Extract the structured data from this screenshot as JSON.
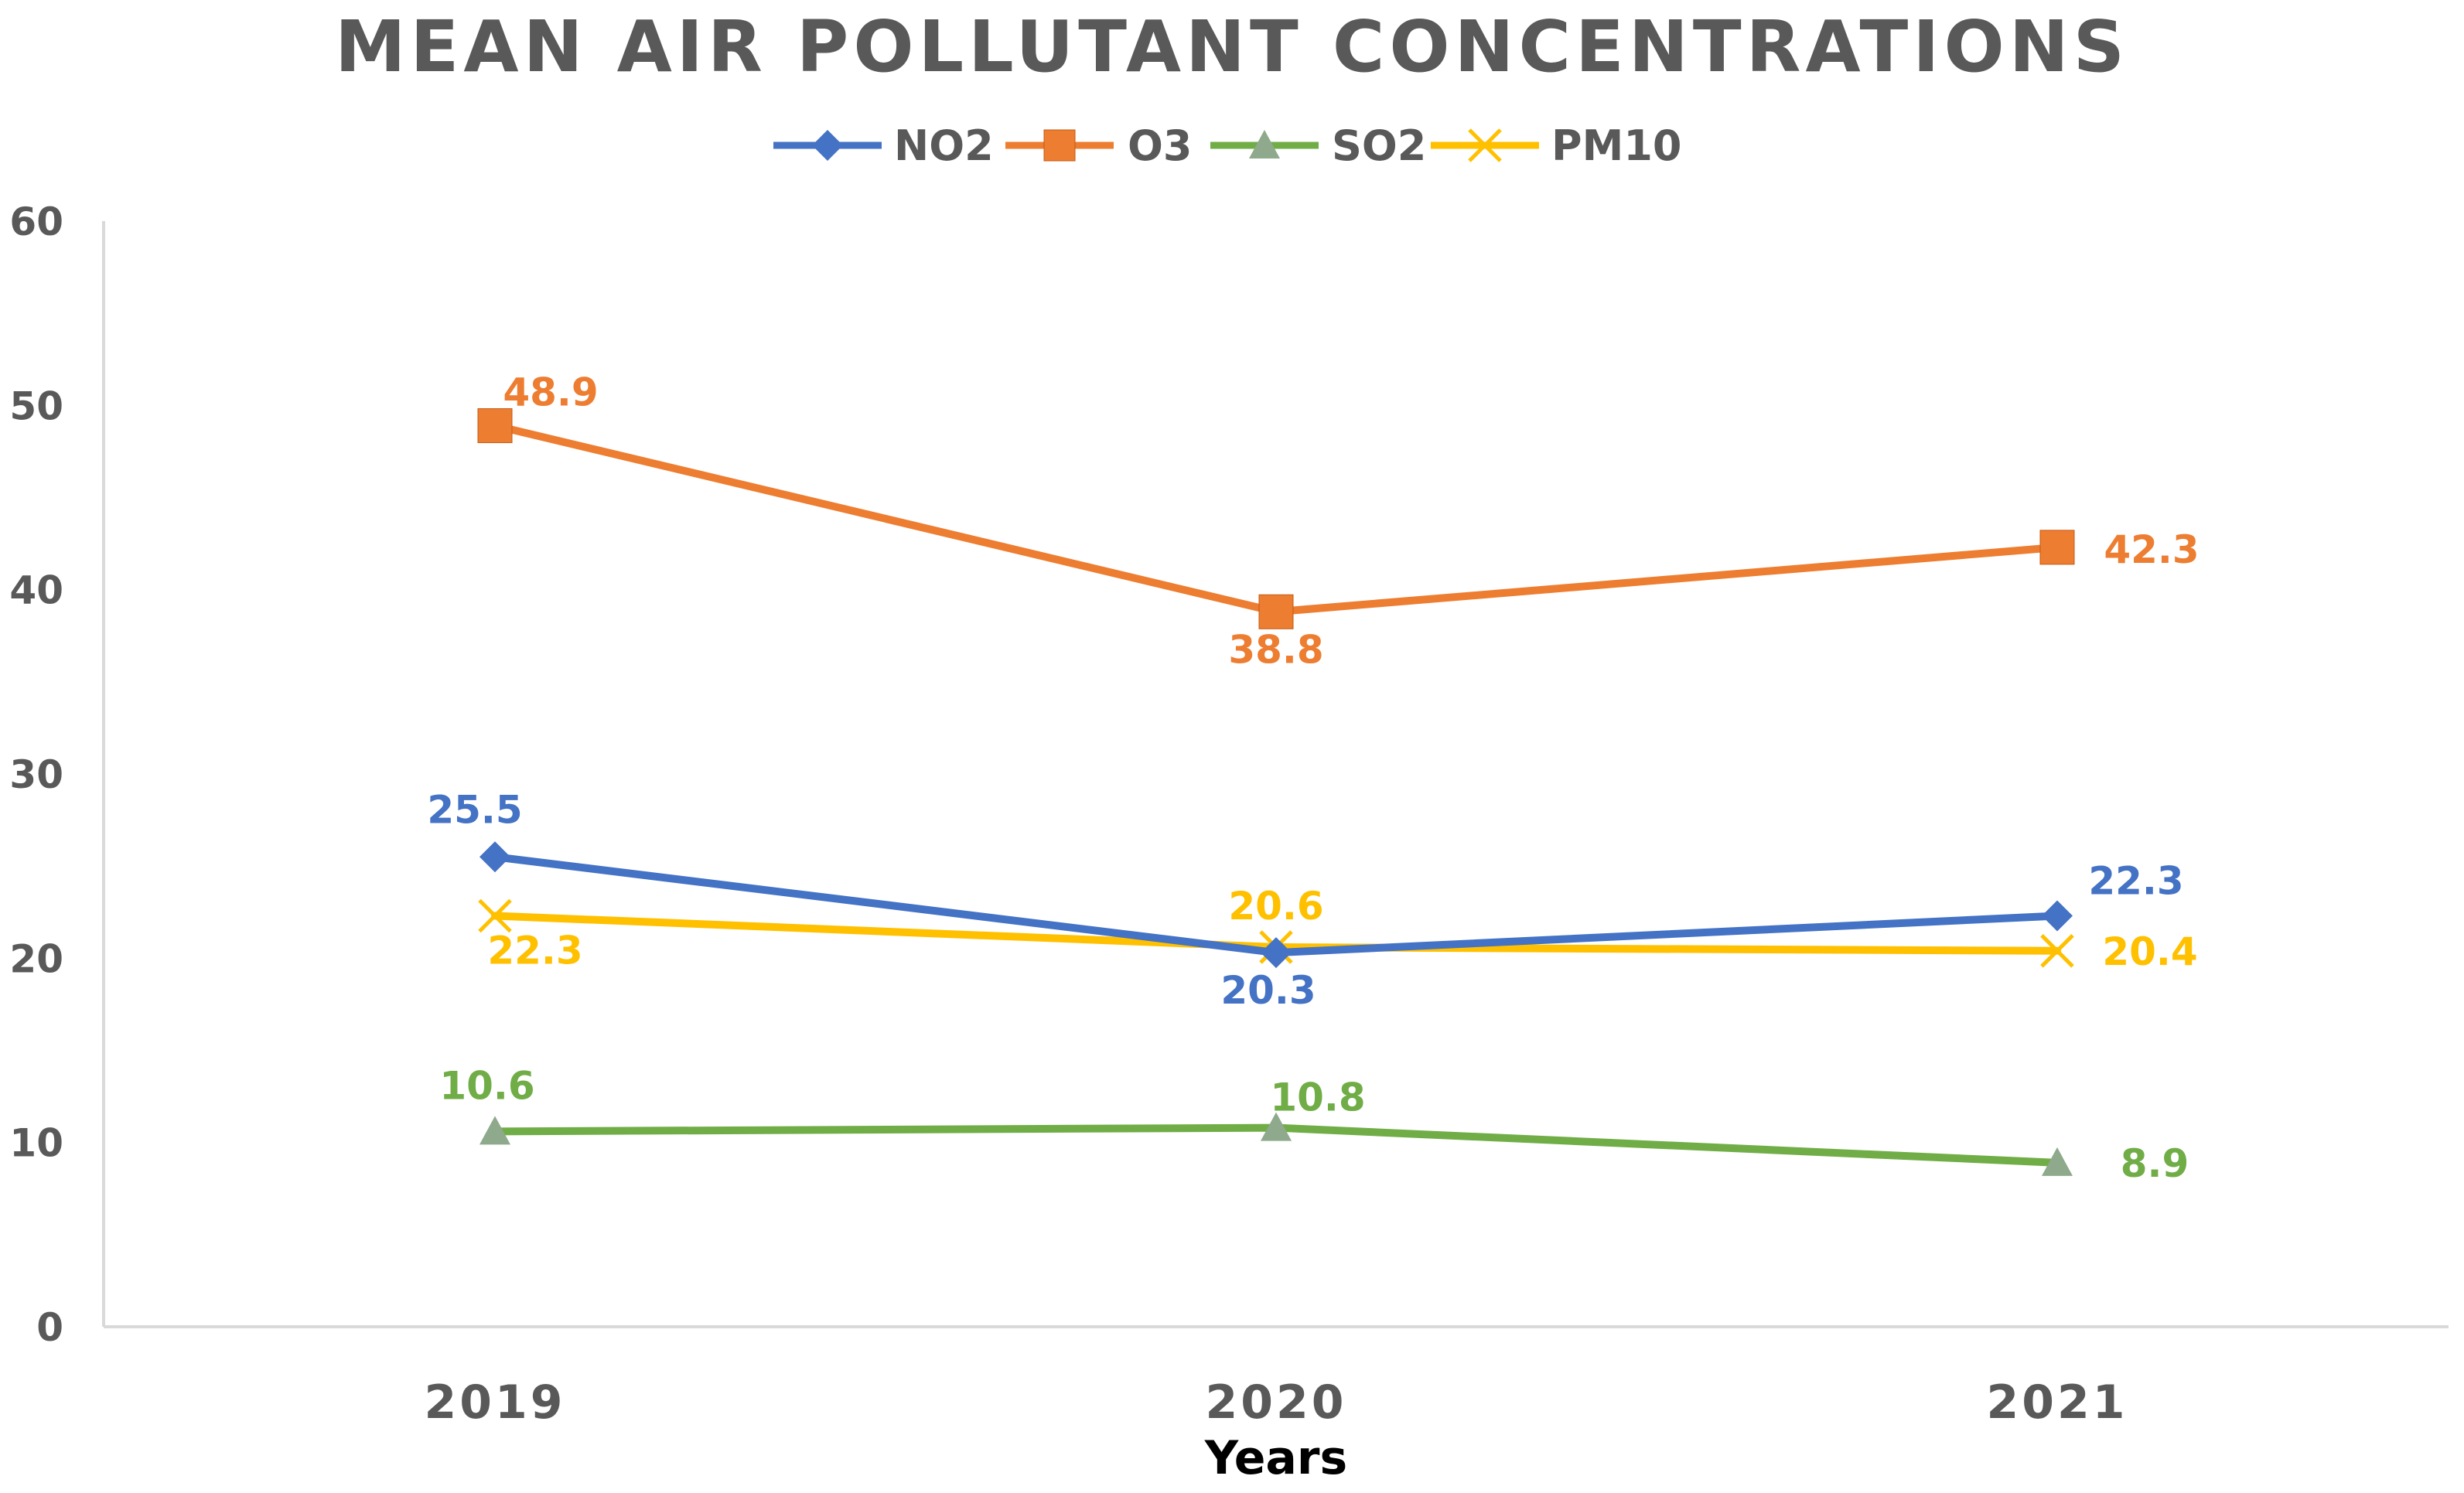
{
  "chart_data": {
    "type": "line",
    "title": "MEAN AIR POLLUTANT CONCENTRATIONS",
    "xlabel": "Years",
    "ylabel": "",
    "categories": [
      "2019",
      "2020",
      "2021"
    ],
    "ylim": [
      0,
      60
    ],
    "yticks": [
      "0",
      "10",
      "20",
      "30",
      "40",
      "50",
      "60"
    ],
    "grid": false,
    "legend_position": "top-center",
    "series": [
      {
        "name": "NO2",
        "values": [
          25.5,
          20.3,
          22.3
        ],
        "labels": [
          "25.5",
          "20.3",
          "22.3"
        ],
        "color": "#4472C4",
        "marker": "diamond"
      },
      {
        "name": "O3",
        "values": [
          48.9,
          38.8,
          42.3
        ],
        "labels": [
          "48.9",
          "38.8",
          "42.3"
        ],
        "color": "#ED7D31",
        "marker": "square"
      },
      {
        "name": "SO2",
        "values": [
          10.6,
          10.8,
          8.9
        ],
        "labels": [
          "10.6",
          "10.8",
          "8.9"
        ],
        "color": "#70AD47",
        "marker": "triangle"
      },
      {
        "name": "PM10",
        "values": [
          22.3,
          20.6,
          20.4
        ],
        "labels": [
          "22.3",
          "20.6",
          "20.4"
        ],
        "color": "#FFC000",
        "marker": "x"
      }
    ]
  }
}
